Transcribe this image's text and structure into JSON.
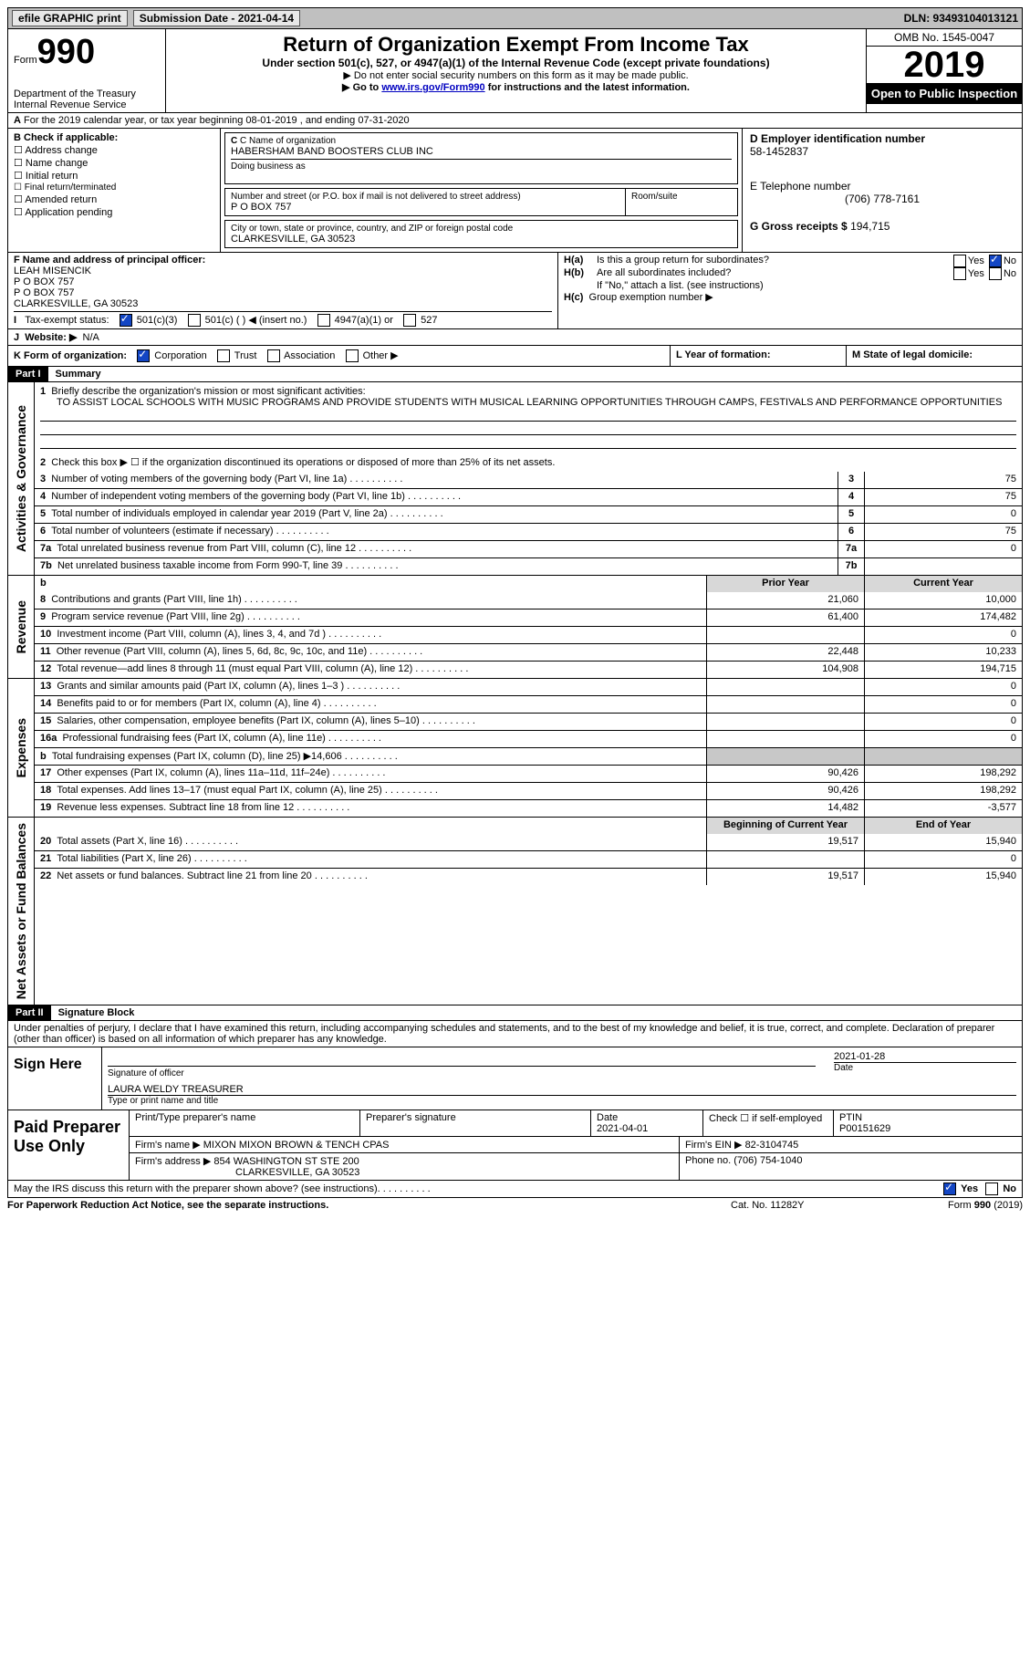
{
  "topbar": {
    "efile": "efile GRAPHIC print",
    "submission": "Submission Date - 2021-04-14",
    "dln": "DLN: 93493104013121"
  },
  "header": {
    "form_prefix": "Form",
    "form_no": "990",
    "dept1": "Department of the Treasury",
    "dept2": "Internal Revenue Service",
    "title": "Return of Organization Exempt From Income Tax",
    "subtitle": "Under section 501(c), 527, or 4947(a)(1) of the Internal Revenue Code (except private foundations)",
    "note1": "Do not enter social security numbers on this form as it may be made public.",
    "note2_pre": "Go to ",
    "note2_link": "www.irs.gov/Form990",
    "note2_post": " for instructions and the latest information.",
    "omb": "OMB No. 1545-0047",
    "year": "2019",
    "inspect": "Open to Public Inspection"
  },
  "lineA": "For the 2019 calendar year, or tax year beginning 08-01-2019    , and ending 07-31-2020",
  "boxB": {
    "label": "B Check if applicable:",
    "opts": [
      "Address change",
      "Name change",
      "Initial return",
      "Final return/terminated",
      "Amended return",
      "Application pending"
    ]
  },
  "boxC": {
    "label": "C Name of organization",
    "name": "HABERSHAM BAND BOOSTERS CLUB INC",
    "dba_label": "Doing business as",
    "street_label": "Number and street (or P.O. box if mail is not delivered to street address)",
    "room_label": "Room/suite",
    "street": "P O BOX 757",
    "city_label": "City or town, state or province, country, and ZIP or foreign postal code",
    "city": "CLARKESVILLE, GA   30523"
  },
  "boxD": {
    "label": "D Employer identification number",
    "val": "58-1452837"
  },
  "boxE": {
    "label": "E Telephone number",
    "val": "(706) 778-7161"
  },
  "boxG": {
    "label": "G Gross receipts $",
    "val": "194,715"
  },
  "boxF": {
    "label": "F  Name and address of principal officer:",
    "l1": "LEAH MISENCIK",
    "l2": "P O BOX 757",
    "l3": "P O BOX 757",
    "l4": "CLARKESVILLE, GA   30523"
  },
  "boxH": {
    "a": "Is this a group return for subordinates?",
    "b": "Are all subordinates included?",
    "note": "If \"No,\" attach a list. (see instructions)",
    "c": "Group exemption number ▶"
  },
  "lineI_label": "Tax-exempt status:",
  "lineI_opts": [
    "501(c)(3)",
    "501(c) (  ) ◀ (insert no.)",
    "4947(a)(1) or",
    "527"
  ],
  "lineJ": {
    "label": "Website: ▶",
    "val": "N/A"
  },
  "lineK": {
    "label": "K Form of organization:",
    "opts": [
      "Corporation",
      "Trust",
      "Association",
      "Other ▶"
    ]
  },
  "lineL": "L Year of formation:",
  "lineM": "M State of legal domicile:",
  "part1": {
    "hdr": "Part I",
    "title": "Summary"
  },
  "mission_label": "Briefly describe the organization's mission or most significant activities:",
  "mission": "TO ASSIST LOCAL SCHOOLS WITH MUSIC PROGRAMS AND PROVIDE STUDENTS WITH MUSICAL LEARNING OPPORTUNITIES THROUGH CAMPS, FESTIVALS AND PERFORMANCE OPPORTUNITIES",
  "line2": "Check this box ▶ ☐  if the organization discontinued its operations or disposed of more than 25% of its net assets.",
  "rows_ag": [
    {
      "n": "3",
      "t": "Number of voting members of the governing body (Part VI, line 1a)",
      "v": "75"
    },
    {
      "n": "4",
      "t": "Number of independent voting members of the governing body (Part VI, line 1b)",
      "v": "75"
    },
    {
      "n": "5",
      "t": "Total number of individuals employed in calendar year 2019 (Part V, line 2a)",
      "v": "0"
    },
    {
      "n": "6",
      "t": "Total number of volunteers (estimate if necessary)",
      "v": "75"
    },
    {
      "n": "7a",
      "t": "Total unrelated business revenue from Part VIII, column (C), line 12",
      "v": "0"
    },
    {
      "n": "7b",
      "t": "Net unrelated business taxable income from Form 990-T, line 39",
      "v": ""
    }
  ],
  "col_hdr": {
    "n": "b",
    "prior": "Prior Year",
    "cur": "Current Year"
  },
  "rows_rev": [
    {
      "n": "8",
      "t": "Contributions and grants (Part VIII, line 1h)",
      "p": "21,060",
      "c": "10,000"
    },
    {
      "n": "9",
      "t": "Program service revenue (Part VIII, line 2g)",
      "p": "61,400",
      "c": "174,482"
    },
    {
      "n": "10",
      "t": "Investment income (Part VIII, column (A), lines 3, 4, and 7d )",
      "p": "",
      "c": "0"
    },
    {
      "n": "11",
      "t": "Other revenue (Part VIII, column (A), lines 5, 6d, 8c, 9c, 10c, and 11e)",
      "p": "22,448",
      "c": "10,233"
    },
    {
      "n": "12",
      "t": "Total revenue—add lines 8 through 11 (must equal Part VIII, column (A), line 12)",
      "p": "104,908",
      "c": "194,715"
    }
  ],
  "rows_exp": [
    {
      "n": "13",
      "t": "Grants and similar amounts paid (Part IX, column (A), lines 1–3 )",
      "p": "",
      "c": "0"
    },
    {
      "n": "14",
      "t": "Benefits paid to or for members (Part IX, column (A), line 4)",
      "p": "",
      "c": "0"
    },
    {
      "n": "15",
      "t": "Salaries, other compensation, employee benefits (Part IX, column (A), lines 5–10)",
      "p": "",
      "c": "0"
    },
    {
      "n": "16a",
      "t": "Professional fundraising fees (Part IX, column (A), line 11e)",
      "p": "",
      "c": "0"
    },
    {
      "n": "b",
      "t": "Total fundraising expenses (Part IX, column (D), line 25) ▶14,606",
      "p": "SHADE",
      "c": "SHADE"
    },
    {
      "n": "17",
      "t": "Other expenses (Part IX, column (A), lines 11a–11d, 11f–24e)",
      "p": "90,426",
      "c": "198,292"
    },
    {
      "n": "18",
      "t": "Total expenses. Add lines 13–17 (must equal Part IX, column (A), line 25)",
      "p": "90,426",
      "c": "198,292"
    },
    {
      "n": "19",
      "t": "Revenue less expenses. Subtract line 18 from line 12",
      "p": "14,482",
      "c": "-3,577"
    }
  ],
  "col_hdr2": {
    "prior": "Beginning of Current Year",
    "cur": "End of Year"
  },
  "rows_net": [
    {
      "n": "20",
      "t": "Total assets (Part X, line 16)",
      "p": "19,517",
      "c": "15,940"
    },
    {
      "n": "21",
      "t": "Total liabilities (Part X, line 26)",
      "p": "",
      "c": "0"
    },
    {
      "n": "22",
      "t": "Net assets or fund balances. Subtract line 21 from line 20",
      "p": "19,517",
      "c": "15,940"
    }
  ],
  "vtabs": {
    "ag": "Activities & Governance",
    "rev": "Revenue",
    "exp": "Expenses",
    "net": "Net Assets or Fund Balances"
  },
  "part2": {
    "hdr": "Part II",
    "title": "Signature Block"
  },
  "sig_decl": "Under penalties of perjury, I declare that I have examined this return, including accompanying schedules and statements, and to the best of my knowledge and belief, it is true, correct, and complete. Declaration of preparer (other than officer) is based on all information of which preparer has any knowledge.",
  "sign": {
    "label": "Sign Here",
    "sig_of": "Signature of officer",
    "date": "2021-01-28",
    "date_lbl": "Date",
    "name": "LAURA WELDY  TREASURER",
    "name_lbl": "Type or print name and title"
  },
  "prep": {
    "label": "Paid Preparer Use Only",
    "h1": "Print/Type preparer's name",
    "h2": "Preparer's signature",
    "h3": "Date",
    "date": "2021-04-01",
    "h4": "Check ☐ if self-employed",
    "h5": "PTIN",
    "ptin": "P00151629",
    "firm_lbl": "Firm's name    ▶",
    "firm": "MIXON MIXON BROWN & TENCH CPAS",
    "ein_lbl": "Firm's EIN ▶",
    "ein": "82-3104745",
    "addr_lbl": "Firm's address ▶",
    "addr1": "854 WASHINGTON ST STE 200",
    "addr2": "CLARKESVILLE, GA   30523",
    "phone_lbl": "Phone no.",
    "phone": "(706) 754-1040"
  },
  "discuss": "May the IRS discuss this return with the preparer shown above? (see instructions)",
  "footer": {
    "left": "For Paperwork Reduction Act Notice, see the separate instructions.",
    "mid": "Cat. No. 11282Y",
    "right": "Form 990 (2019)"
  },
  "yes": "Yes",
  "no": "No"
}
